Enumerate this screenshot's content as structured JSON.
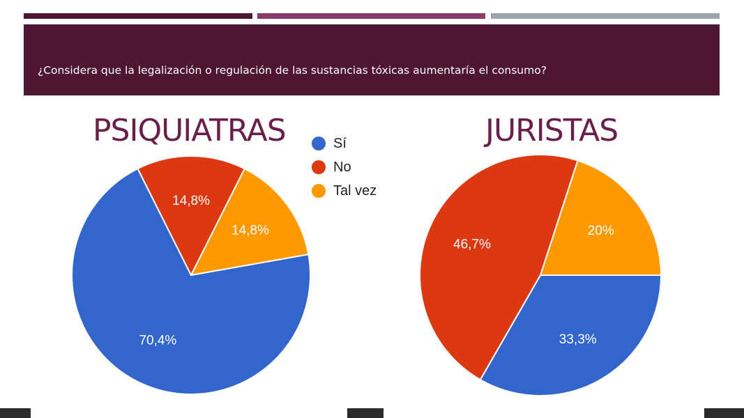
{
  "slide": {
    "question": "¿Considera que la legalización o regulación de las sustancias tóxicas aumentaría el consumo?",
    "colors": {
      "banner": "#4e1535",
      "bar1": "#4e1535",
      "bar2": "#8e3a6c",
      "bar3": "#9aa5ad",
      "title": "#6a1f4a"
    }
  },
  "legend": [
    {
      "label": "Sí",
      "color": "#3366cc"
    },
    {
      "label": "No",
      "color": "#dc3912"
    },
    {
      "label": "Tal vez",
      "color": "#ff9900"
    }
  ],
  "chart_data": [
    {
      "type": "pie",
      "title": "PSIQUIATRAS",
      "legend_position": "right",
      "slices": [
        {
          "label": "Sí",
          "value": 70.4,
          "display": "70,4%",
          "color": "#3366cc"
        },
        {
          "label": "No",
          "value": 14.8,
          "display": "14,8%",
          "color": "#dc3912"
        },
        {
          "label": "Tal vez",
          "value": 14.8,
          "display": "14,8%",
          "color": "#ff9900"
        }
      ]
    },
    {
      "type": "pie",
      "title": "JURISTAS",
      "slices": [
        {
          "label": "Sí",
          "value": 33.3,
          "display": "33,3%",
          "color": "#3366cc"
        },
        {
          "label": "No",
          "value": 46.7,
          "display": "46,7%",
          "color": "#dc3912"
        },
        {
          "label": "Tal vez",
          "value": 20,
          "display": "20%",
          "color": "#ff9900"
        }
      ]
    }
  ]
}
